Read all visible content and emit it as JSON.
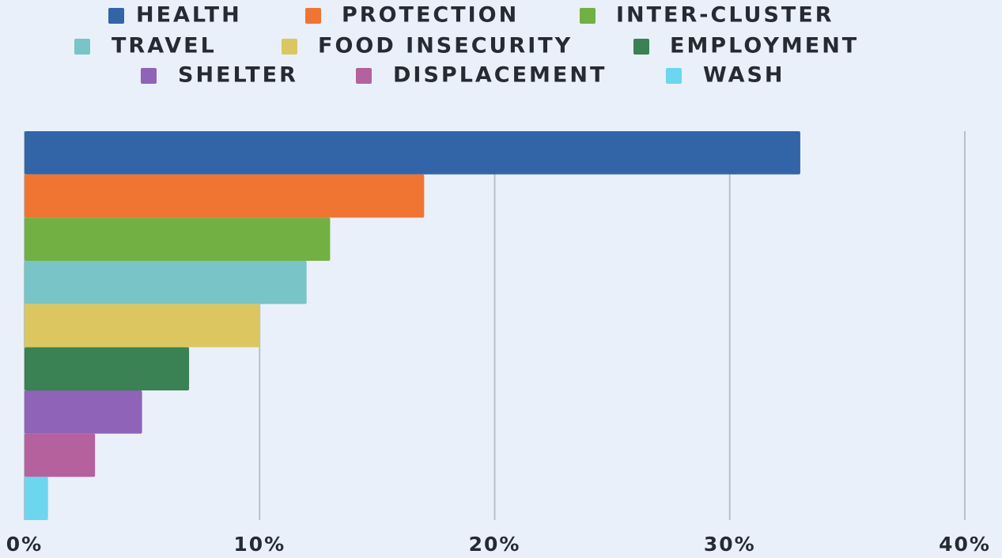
{
  "chart_data": {
    "type": "bar",
    "orientation": "horizontal",
    "series": [
      {
        "name": "HEALTH",
        "color": "#3265a8",
        "values": [
          33
        ]
      },
      {
        "name": "PROTECTION",
        "color": "#f07532",
        "values": [
          17
        ]
      },
      {
        "name": "INTER-CLUSTER",
        "color": "#72b043",
        "values": [
          13
        ]
      },
      {
        "name": "TRAVEL",
        "color": "#78c4c6",
        "values": [
          12
        ]
      },
      {
        "name": "FOOD INSECURITY",
        "color": "#dcc660",
        "values": [
          10
        ]
      },
      {
        "name": "EMPLOYMENT",
        "color": "#3a8153",
        "values": [
          7
        ]
      },
      {
        "name": "SHELTER",
        "color": "#8e63b8",
        "values": [
          5
        ]
      },
      {
        "name": "DISPLACEMENT",
        "color": "#b5619e",
        "values": [
          3
        ]
      },
      {
        "name": "WASH",
        "color": "#6dd6ef",
        "values": [
          1
        ]
      }
    ],
    "xlim": [
      0,
      40
    ],
    "xticks": [
      {
        "value": 0,
        "label": "0%"
      },
      {
        "value": 10,
        "label": "10%"
      },
      {
        "value": 20,
        "label": "20%"
      },
      {
        "value": 30,
        "label": "30%"
      },
      {
        "value": 40,
        "label": "40%"
      }
    ],
    "grid": true
  }
}
